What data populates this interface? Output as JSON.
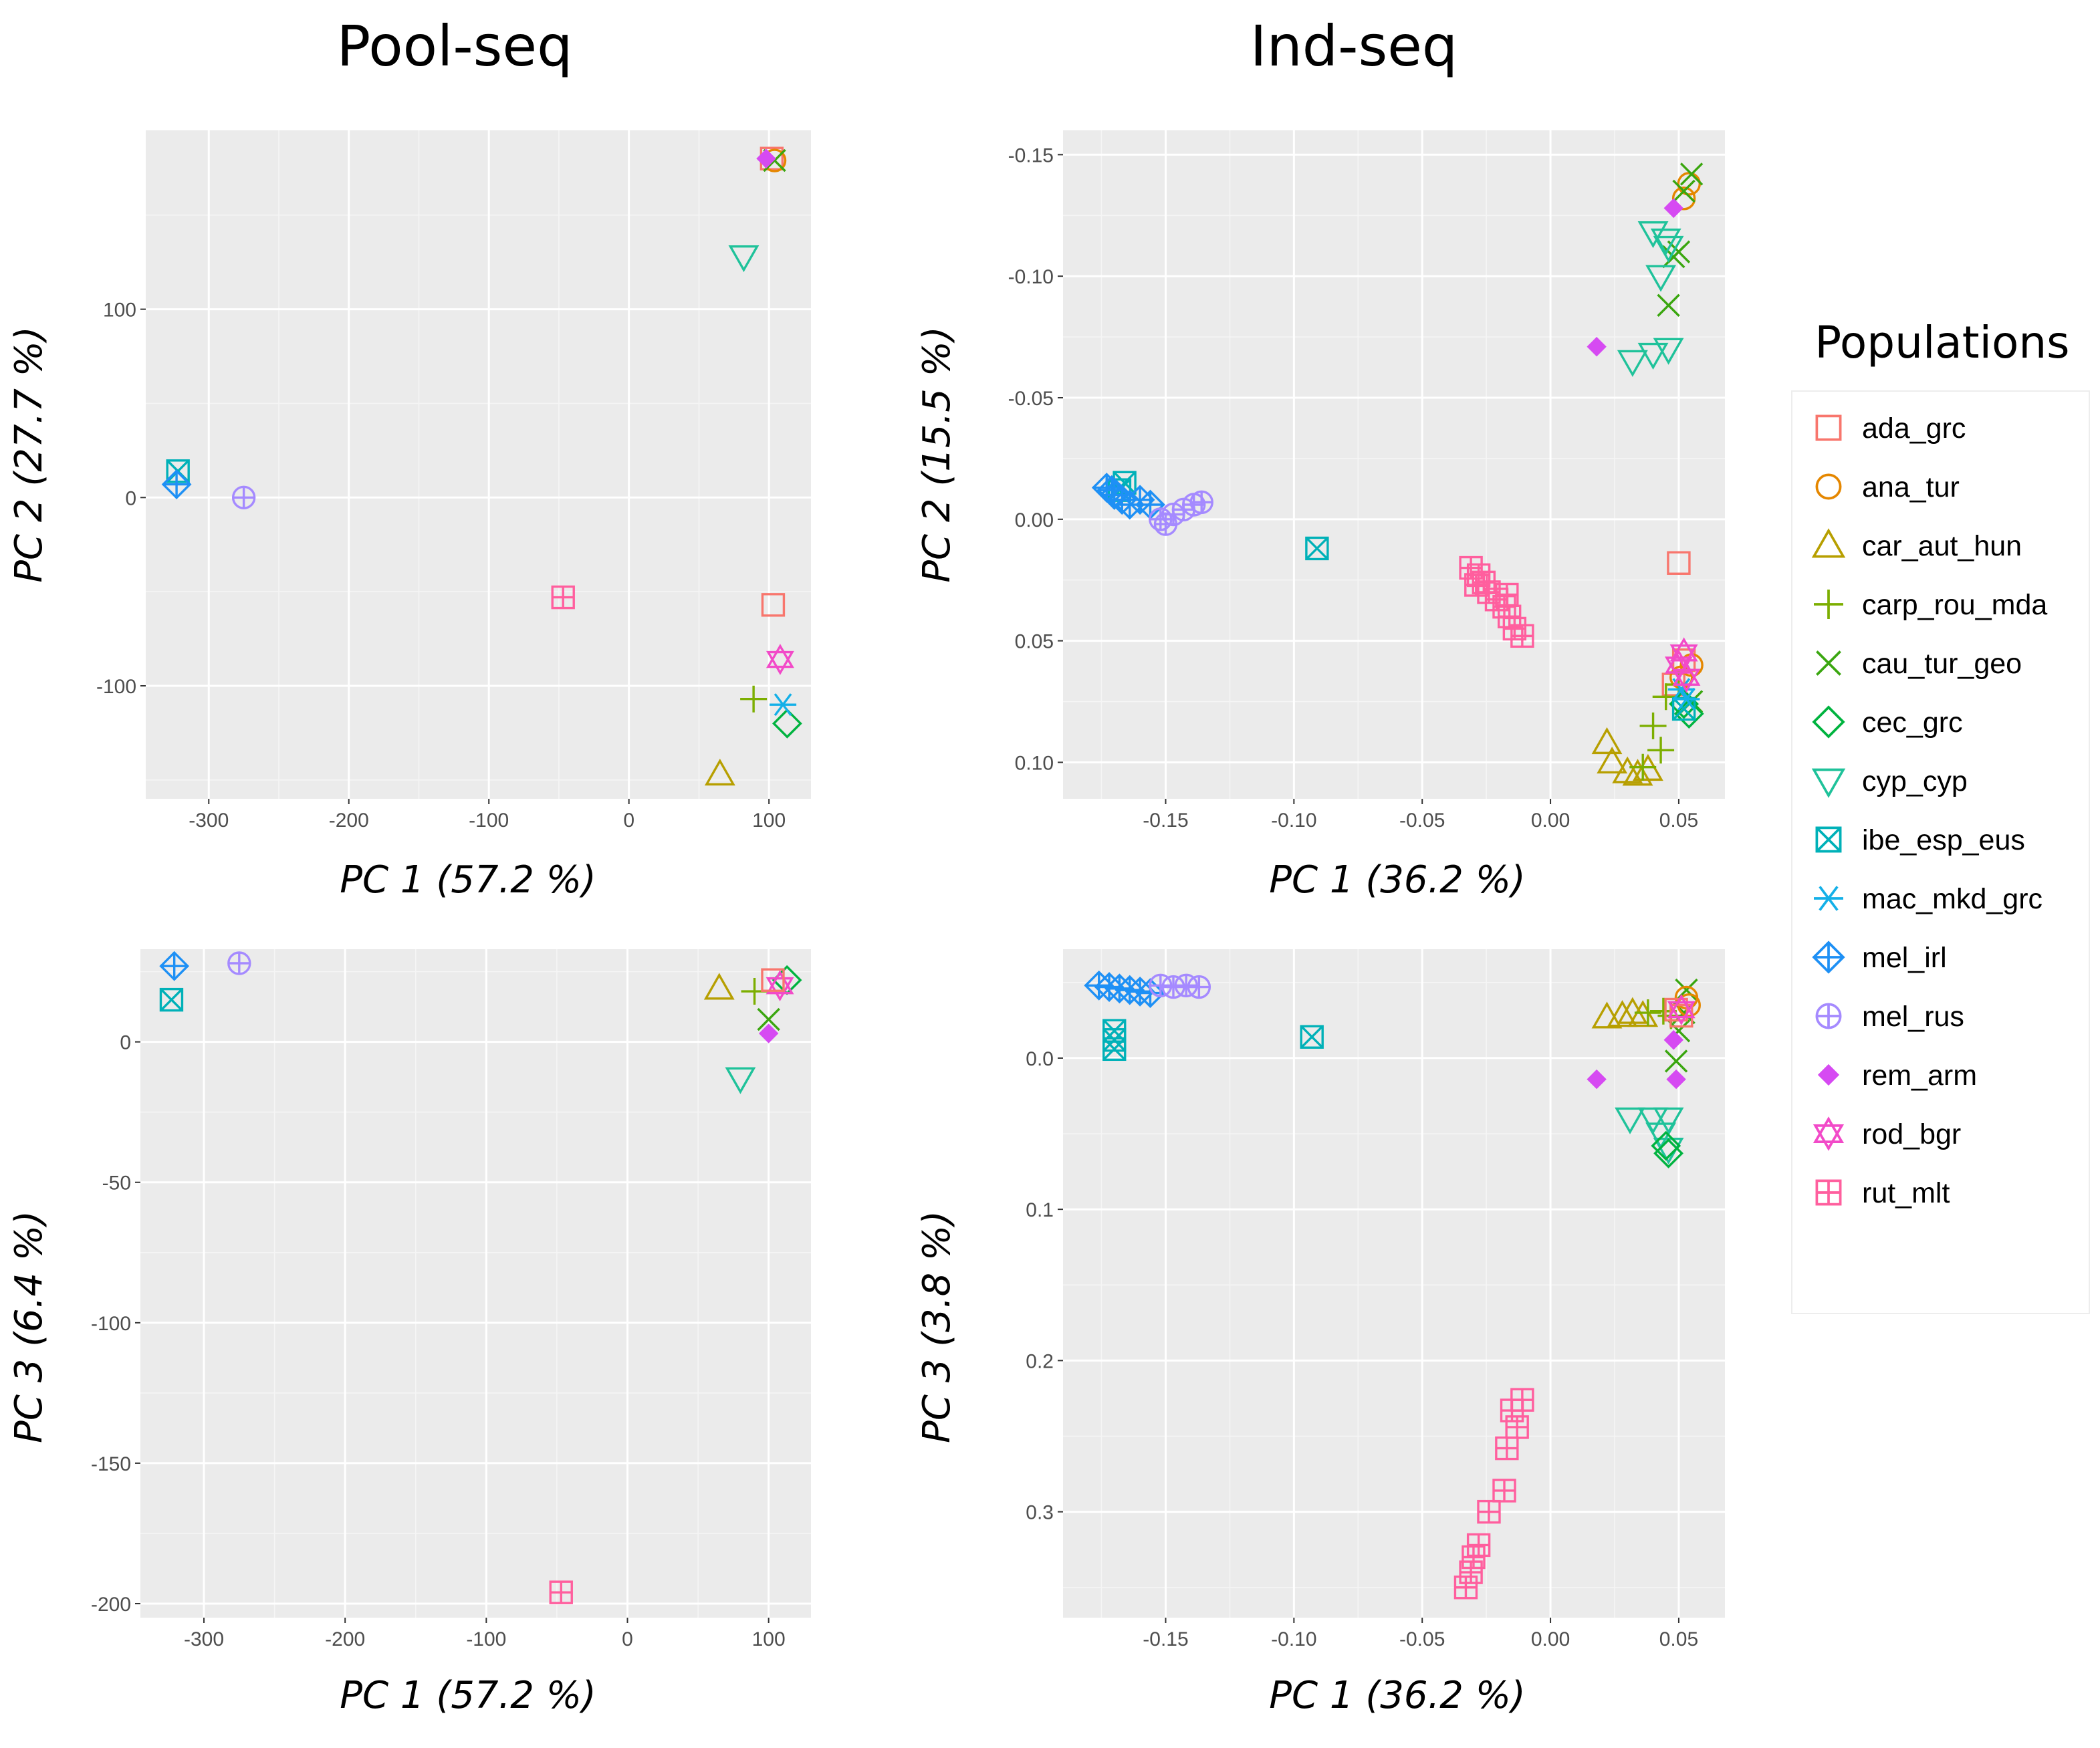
{
  "headers": {
    "left": "Pool-seq",
    "right": "Ind-seq"
  },
  "legend": {
    "title": "Populations",
    "items": [
      {
        "name": "ada_grc",
        "color": "#F8766D",
        "shape": "square"
      },
      {
        "name": "ana_tur",
        "color": "#E58700",
        "shape": "circle"
      },
      {
        "name": "car_aut_hun",
        "color": "#B79F00",
        "shape": "triangle"
      },
      {
        "name": "carp_rou_mda",
        "color": "#7CAE00",
        "shape": "plus"
      },
      {
        "name": "cau_tur_geo",
        "color": "#3AA60F",
        "shape": "cross"
      },
      {
        "name": "cec_grc",
        "color": "#00B33F",
        "shape": "diamond"
      },
      {
        "name": "cyp_cyp",
        "color": "#1FC29A",
        "shape": "triangle-down"
      },
      {
        "name": "ibe_esp_eus",
        "color": "#00B1B8",
        "shape": "square-cross"
      },
      {
        "name": "mac_mkd_grc",
        "color": "#13B0E8",
        "shape": "asterisk"
      },
      {
        "name": "mel_irl",
        "color": "#1E90F5",
        "shape": "diamond-plus"
      },
      {
        "name": "mel_rus",
        "color": "#A58AFF",
        "shape": "circle-plus"
      },
      {
        "name": "rem_arm",
        "color": "#D64AF2",
        "shape": "diamond-filled"
      },
      {
        "name": "rod_bgr",
        "color": "#F24AC8",
        "shape": "star-of-david"
      },
      {
        "name": "rut_mlt",
        "color": "#FF5F9E",
        "shape": "square-plus"
      }
    ]
  },
  "chart_data": [
    {
      "id": "pool-pc1-pc2",
      "type": "scatter",
      "xlabel": "PC 1 (57.2 %)",
      "ylabel": "PC 2 (27.7 %)",
      "xlim": [
        -345,
        130
      ],
      "ylim": [
        -160,
        195
      ],
      "y_reversed": false,
      "xticks": [
        -300,
        -200,
        -100,
        0,
        100
      ],
      "yticks": [
        -100,
        0,
        100
      ],
      "points": [
        {
          "pop": "ada_grc",
          "pts": [
            [
              103,
              -57
            ],
            [
              102,
              180
            ]
          ]
        },
        {
          "pop": "ana_tur",
          "pts": [
            [
              104,
              179
            ]
          ]
        },
        {
          "pop": "car_aut_hun",
          "pts": [
            [
              65,
              -147
            ]
          ]
        },
        {
          "pop": "carp_rou_mda",
          "pts": [
            [
              89,
              -107
            ]
          ]
        },
        {
          "pop": "cau_tur_geo",
          "pts": [
            [
              104,
              179
            ]
          ]
        },
        {
          "pop": "cec_grc",
          "pts": [
            [
              113,
              -120
            ]
          ]
        },
        {
          "pop": "cyp_cyp",
          "pts": [
            [
              82,
              128
            ]
          ]
        },
        {
          "pop": "ibe_esp_eus",
          "pts": [
            [
              -322,
              14
            ]
          ]
        },
        {
          "pop": "mac_mkd_grc",
          "pts": [
            [
              110,
              -110
            ]
          ]
        },
        {
          "pop": "mel_irl",
          "pts": [
            [
              -323,
              7
            ]
          ]
        },
        {
          "pop": "mel_rus",
          "pts": [
            [
              -275,
              0
            ]
          ]
        },
        {
          "pop": "rem_arm",
          "pts": [
            [
              98,
              180
            ]
          ]
        },
        {
          "pop": "rod_bgr",
          "pts": [
            [
              108,
              -86
            ]
          ]
        },
        {
          "pop": "rut_mlt",
          "pts": [
            [
              -47,
              -53
            ]
          ]
        }
      ]
    },
    {
      "id": "ind-pc1-pc2",
      "type": "scatter",
      "xlabel": "PC 1 (36.2 %)",
      "ylabel": "PC 2 (15.5 %)",
      "xlim": [
        -0.19,
        0.068
      ],
      "ylim": [
        -0.16,
        0.115
      ],
      "y_reversed": true,
      "xticks": [
        -0.15,
        -0.1,
        -0.05,
        0.0,
        0.05
      ],
      "yticks": [
        -0.15,
        -0.1,
        -0.05,
        0.0,
        0.05,
        0.1
      ],
      "ytick_labels": [
        "-0.15",
        "-0.10",
        "-0.05",
        "0.00",
        "0.05",
        "0.10"
      ],
      "xtick_labels": [
        "-0.15",
        "-0.10",
        "-0.05",
        "0.00",
        "0.05"
      ],
      "points": [
        {
          "pop": "ada_grc",
          "pts": [
            [
              0.05,
              0.018
            ],
            [
              0.048,
              0.068
            ],
            [
              0.052,
              0.058
            ]
          ]
        },
        {
          "pop": "ana_tur",
          "pts": [
            [
              0.054,
              -0.138
            ],
            [
              0.052,
              -0.132
            ],
            [
              0.055,
              0.06
            ],
            [
              0.051,
              0.065
            ]
          ]
        },
        {
          "pop": "car_aut_hun",
          "pts": [
            [
              0.022,
              0.092
            ],
            [
              0.024,
              0.1
            ],
            [
              0.03,
              0.104
            ],
            [
              0.034,
              0.105
            ],
            [
              0.038,
              0.103
            ]
          ]
        },
        {
          "pop": "carp_rou_mda",
          "pts": [
            [
              0.04,
              0.085
            ],
            [
              0.045,
              0.073
            ],
            [
              0.05,
              0.068
            ],
            [
              0.036,
              0.102
            ],
            [
              0.043,
              0.095
            ]
          ]
        },
        {
          "pop": "cau_tur_geo",
          "pts": [
            [
              0.055,
              -0.142
            ],
            [
              0.052,
              -0.135
            ],
            [
              0.05,
              -0.11
            ],
            [
              0.048,
              -0.108
            ],
            [
              0.046,
              -0.088
            ],
            [
              0.055,
              0.075
            ]
          ]
        },
        {
          "pop": "cec_grc",
          "pts": [
            [
              0.054,
              0.08
            ],
            [
              0.052,
              0.076
            ]
          ]
        },
        {
          "pop": "cyp_cyp",
          "pts": [
            [
              0.04,
              -0.118
            ],
            [
              0.045,
              -0.115
            ],
            [
              0.043,
              -0.1
            ],
            [
              0.032,
              -0.065
            ],
            [
              0.04,
              -0.068
            ],
            [
              0.046,
              -0.07
            ],
            [
              0.046,
              -0.112
            ]
          ]
        },
        {
          "pop": "ibe_esp_eus",
          "pts": [
            [
              -0.166,
              -0.015
            ],
            [
              -0.168,
              -0.012
            ],
            [
              -0.091,
              0.012
            ],
            [
              0.052,
              0.078
            ]
          ]
        },
        {
          "pop": "mac_mkd_grc",
          "pts": [
            [
              0.053,
              0.074
            ],
            [
              0.051,
              0.07
            ]
          ]
        },
        {
          "pop": "mel_irl",
          "pts": [
            [
              -0.173,
              -0.013
            ],
            [
              -0.17,
              -0.01
            ],
            [
              -0.167,
              -0.008
            ],
            [
              -0.164,
              -0.006
            ],
            [
              -0.16,
              -0.008
            ],
            [
              -0.156,
              -0.006
            ],
            [
              -0.171,
              -0.012
            ]
          ]
        },
        {
          "pop": "mel_rus",
          "pts": [
            [
              -0.152,
              0.0
            ],
            [
              -0.147,
              -0.002
            ],
            [
              -0.143,
              -0.004
            ],
            [
              -0.139,
              -0.006
            ],
            [
              -0.136,
              -0.007
            ],
            [
              -0.15,
              0.002
            ]
          ]
        },
        {
          "pop": "rem_arm",
          "pts": [
            [
              0.018,
              -0.071
            ],
            [
              0.048,
              -0.128
            ]
          ]
        },
        {
          "pop": "rod_bgr",
          "pts": [
            [
              0.052,
              0.055
            ],
            [
              0.05,
              0.06
            ],
            [
              0.053,
              0.065
            ]
          ]
        },
        {
          "pop": "rut_mlt",
          "pts": [
            [
              -0.031,
              0.02
            ],
            [
              -0.028,
              0.023
            ],
            [
              -0.026,
              0.026
            ],
            [
              -0.024,
              0.03
            ],
            [
              -0.021,
              0.033
            ],
            [
              -0.018,
              0.036
            ],
            [
              -0.016,
              0.04
            ],
            [
              -0.014,
              0.045
            ],
            [
              -0.011,
              0.048
            ],
            [
              -0.029,
              0.027
            ],
            [
              -0.017,
              0.031
            ]
          ]
        }
      ]
    },
    {
      "id": "pool-pc1-pc3",
      "type": "scatter",
      "xlabel": "PC 1 (57.2 %)",
      "ylabel": "PC 3 (6.4 %)",
      "xlim": [
        -345,
        130
      ],
      "ylim": [
        -205,
        33
      ],
      "y_reversed": false,
      "xticks": [
        -300,
        -200,
        -100,
        0,
        100
      ],
      "yticks": [
        -200,
        -150,
        -100,
        -50,
        0
      ],
      "points": [
        {
          "pop": "car_aut_hun",
          "pts": [
            [
              65,
              19
            ]
          ]
        },
        {
          "pop": "carp_rou_mda",
          "pts": [
            [
              90,
              18
            ]
          ]
        },
        {
          "pop": "cau_tur_geo",
          "pts": [
            [
              100,
              8
            ]
          ]
        },
        {
          "pop": "cec_grc",
          "pts": [
            [
              113,
              22
            ]
          ]
        },
        {
          "pop": "cyp_cyp",
          "pts": [
            [
              80,
              -13
            ]
          ]
        },
        {
          "pop": "ibe_esp_eus",
          "pts": [
            [
              -323,
              15
            ]
          ]
        },
        {
          "pop": "mel_irl",
          "pts": [
            [
              -321,
              27
            ]
          ]
        },
        {
          "pop": "mel_rus",
          "pts": [
            [
              -275,
              28
            ]
          ]
        },
        {
          "pop": "rem_arm",
          "pts": [
            [
              100,
              3
            ]
          ]
        },
        {
          "pop": "rod_bgr",
          "pts": [
            [
              108,
              20
            ]
          ]
        },
        {
          "pop": "ada_grc",
          "pts": [
            [
              103,
              22
            ]
          ]
        },
        {
          "pop": "rut_mlt",
          "pts": [
            [
              -47,
              -196
            ]
          ]
        }
      ]
    },
    {
      "id": "ind-pc1-pc3",
      "type": "scatter",
      "xlabel": "PC 1 (36.2 %)",
      "ylabel": "PC 3 (3.8 %)",
      "xlim": [
        -0.19,
        0.068
      ],
      "ylim": [
        -0.072,
        0.37
      ],
      "y_reversed": true,
      "xticks": [
        -0.15,
        -0.1,
        -0.05,
        0.0,
        0.05
      ],
      "yticks": [
        0.0,
        0.1,
        0.2,
        0.3
      ],
      "xtick_labels": [
        "-0.15",
        "-0.10",
        "-0.05",
        "0.00",
        "0.05"
      ],
      "ytick_labels": [
        "0.0",
        "0.1",
        "0.2",
        "0.3"
      ],
      "points": [
        {
          "pop": "mel_irl",
          "pts": [
            [
              -0.176,
              -0.048
            ],
            [
              -0.172,
              -0.047
            ],
            [
              -0.168,
              -0.046
            ],
            [
              -0.164,
              -0.045
            ],
            [
              -0.16,
              -0.044
            ],
            [
              -0.156,
              -0.043
            ]
          ]
        },
        {
          "pop": "mel_rus",
          "pts": [
            [
              -0.152,
              -0.048
            ],
            [
              -0.147,
              -0.047
            ],
            [
              -0.142,
              -0.048
            ],
            [
              -0.137,
              -0.047
            ]
          ]
        },
        {
          "pop": "ibe_esp_eus",
          "pts": [
            [
              -0.17,
              -0.018
            ],
            [
              -0.17,
              -0.012
            ],
            [
              -0.17,
              -0.006
            ],
            [
              -0.093,
              -0.014
            ]
          ]
        },
        {
          "pop": "car_aut_hun",
          "pts": [
            [
              0.022,
              -0.027
            ],
            [
              0.028,
              -0.028
            ],
            [
              0.032,
              -0.03
            ],
            [
              0.036,
              -0.028
            ]
          ]
        },
        {
          "pop": "carp_rou_mda",
          "pts": [
            [
              0.038,
              -0.03
            ],
            [
              0.044,
              -0.031
            ],
            [
              0.047,
              -0.028
            ]
          ]
        },
        {
          "pop": "cau_tur_geo",
          "pts": [
            [
              0.053,
              -0.045
            ],
            [
              0.052,
              -0.03
            ],
            [
              0.05,
              -0.018
            ],
            [
              0.049,
              0.002
            ]
          ]
        },
        {
          "pop": "ana_tur",
          "pts": [
            [
              0.053,
              -0.04
            ],
            [
              0.054,
              -0.035
            ]
          ]
        },
        {
          "pop": "ada_grc",
          "pts": [
            [
              0.051,
              -0.028
            ],
            [
              0.049,
              -0.032
            ]
          ]
        },
        {
          "pop": "rod_bgr",
          "pts": [
            [
              0.051,
              -0.032
            ]
          ]
        },
        {
          "pop": "rem_arm",
          "pts": [
            [
              0.018,
              0.014
            ],
            [
              0.049,
              0.014
            ],
            [
              0.048,
              -0.012
            ]
          ]
        },
        {
          "pop": "cyp_cyp",
          "pts": [
            [
              0.031,
              0.04
            ],
            [
              0.04,
              0.04
            ],
            [
              0.046,
              0.04
            ],
            [
              0.043,
              0.05
            ],
            [
              0.046,
              0.06
            ]
          ]
        },
        {
          "pop": "cec_grc",
          "pts": [
            [
              0.045,
              0.058
            ],
            [
              0.046,
              0.063
            ]
          ]
        },
        {
          "pop": "rut_mlt",
          "pts": [
            [
              -0.011,
              0.226
            ],
            [
              -0.015,
              0.233
            ],
            [
              -0.013,
              0.244
            ],
            [
              -0.017,
              0.258
            ],
            [
              -0.018,
              0.286
            ],
            [
              -0.024,
              0.3
            ],
            [
              -0.028,
              0.322
            ],
            [
              -0.03,
              0.33
            ],
            [
              -0.031,
              0.34
            ],
            [
              -0.033,
              0.35
            ]
          ]
        }
      ]
    }
  ]
}
